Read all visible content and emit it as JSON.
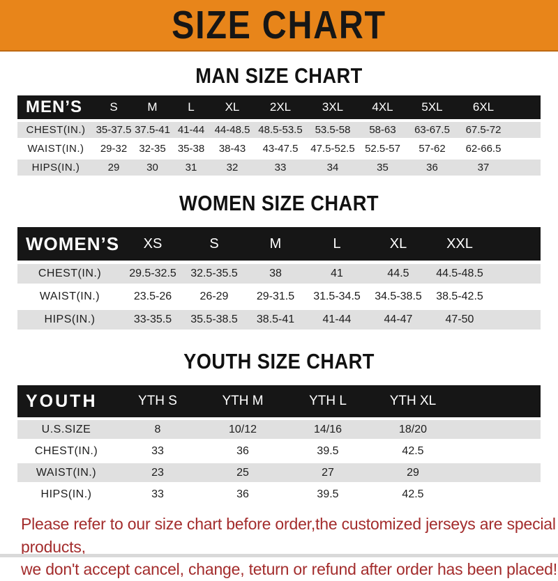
{
  "banner": {
    "title": "SIZE CHART"
  },
  "colors": {
    "banner_bg": "#E8851A",
    "table_header_bg": "#161616",
    "row_shade": "#E0E0E0",
    "footer_text": "#A32C2C"
  },
  "sections": [
    {
      "heading": "MAN SIZE CHART",
      "table": {
        "label": "MEN’S",
        "columns": [
          "S",
          "M",
          "L",
          "XL",
          "2XL",
          "3XL",
          "4XL",
          "5XL",
          "6XL"
        ],
        "rows": [
          {
            "label": "CHEST(IN.)",
            "values": [
              "35-37.5",
              "37.5-41",
              "41-44",
              "44-48.5",
              "48.5-53.5",
              "53.5-58",
              "58-63",
              "63-67.5",
              "67.5-72"
            ]
          },
          {
            "label": "WAIST(IN.)",
            "values": [
              "29-32",
              "32-35",
              "35-38",
              "38-43",
              "43-47.5",
              "47.5-52.5",
              "52.5-57",
              "57-62",
              "62-66.5"
            ]
          },
          {
            "label": "HIPS(IN.)",
            "values": [
              "29",
              "30",
              "31",
              "32",
              "33",
              "34",
              "35",
              "36",
              "37"
            ]
          }
        ]
      }
    },
    {
      "heading": "WOMEN SIZE CHART",
      "table": {
        "label": "WOMEN’S",
        "columns": [
          "XS",
          "S",
          "M",
          "L",
          "XL",
          "XXL"
        ],
        "rows": [
          {
            "label": "CHEST(IN.)",
            "values": [
              "29.5-32.5",
              "32.5-35.5",
              "38",
              "41",
              "44.5",
              "44.5-48.5"
            ]
          },
          {
            "label": "WAIST(IN.)",
            "values": [
              "23.5-26",
              "26-29",
              "29-31.5",
              "31.5-34.5",
              "34.5-38.5",
              "38.5-42.5"
            ]
          },
          {
            "label": "HIPS(IN.)",
            "values": [
              "33-35.5",
              "35.5-38.5",
              "38.5-41",
              "41-44",
              "44-47",
              "47-50"
            ]
          }
        ]
      }
    },
    {
      "heading": "YOUTH SIZE CHART",
      "table": {
        "label": "YOUTH",
        "columns": [
          "YTH S",
          "YTH M",
          "YTH L",
          "YTH XL"
        ],
        "rows": [
          {
            "label": "U.S.SIZE",
            "values": [
              "8",
              "10/12",
              "14/16",
              "18/20"
            ]
          },
          {
            "label": "CHEST(IN.)",
            "values": [
              "33",
              "36",
              "39.5",
              "42.5"
            ]
          },
          {
            "label": "WAIST(IN.)",
            "values": [
              "23",
              "25",
              "27",
              "29"
            ]
          },
          {
            "label": "HIPS(IN.)",
            "values": [
              "33",
              "36",
              "39.5",
              "42.5"
            ]
          }
        ]
      }
    }
  ],
  "footer": {
    "lines": [
      "Please refer to our size chart before order,the customized jerseys are special products,",
      "we don't accept cancel, change, teturn or refund after order has been placed!"
    ]
  }
}
